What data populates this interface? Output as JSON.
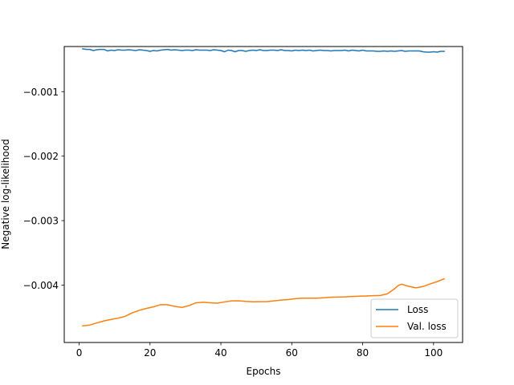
{
  "chart_data": {
    "type": "line",
    "title": "",
    "xlabel": "Epochs",
    "ylabel": "Negative log-likelihood",
    "xlim": [
      -4.2,
      108.2
    ],
    "ylim": [
      -0.00489,
      -0.0003
    ],
    "xticks": [
      0,
      20,
      40,
      60,
      80,
      100
    ],
    "yticks": [
      -0.001,
      -0.002,
      -0.003,
      -0.004
    ],
    "xtick_labels": [
      "0",
      "20",
      "40",
      "60",
      "80",
      "100"
    ],
    "ytick_labels": [
      "−0.001",
      "−0.002",
      "−0.003",
      "−0.004"
    ],
    "grid": false,
    "legend_position": "lower-right",
    "series": [
      {
        "name": "Loss",
        "color": "#1f77b4",
        "x": [
          1,
          2,
          3,
          4,
          5,
          6,
          7,
          8,
          9,
          10,
          11,
          12,
          13,
          14,
          15,
          16,
          17,
          18,
          19,
          20,
          21,
          22,
          23,
          24,
          25,
          26,
          27,
          28,
          29,
          30,
          31,
          32,
          33,
          34,
          35,
          36,
          37,
          38,
          39,
          40,
          41,
          42,
          43,
          44,
          45,
          46,
          47,
          48,
          49,
          50,
          51,
          52,
          53,
          54,
          55,
          56,
          57,
          58,
          59,
          60,
          61,
          62,
          63,
          64,
          65,
          66,
          67,
          68,
          69,
          70,
          71,
          72,
          73,
          74,
          75,
          76,
          77,
          78,
          79,
          80,
          81,
          82,
          83,
          84,
          85,
          86,
          87,
          88,
          89,
          90,
          91,
          92,
          93,
          94,
          95,
          96,
          97,
          98,
          99,
          100,
          101,
          102,
          103
        ],
        "values": [
          -0.000336,
          -0.000345,
          -0.000345,
          -0.000362,
          -0.00035,
          -0.000345,
          -0.000345,
          -0.000368,
          -0.000356,
          -0.000362,
          -0.00035,
          -0.000356,
          -0.000356,
          -0.00035,
          -0.000356,
          -0.000362,
          -0.00035,
          -0.000356,
          -0.000362,
          -0.000375,
          -0.000362,
          -0.000368,
          -0.000356,
          -0.00035,
          -0.000345,
          -0.000356,
          -0.00035,
          -0.000356,
          -0.000362,
          -0.000356,
          -0.000356,
          -0.000362,
          -0.00035,
          -0.000356,
          -0.000356,
          -0.000356,
          -0.000362,
          -0.00035,
          -0.000356,
          -0.000362,
          -0.000381,
          -0.000356,
          -0.000362,
          -0.000381,
          -0.000362,
          -0.000362,
          -0.000375,
          -0.000362,
          -0.000356,
          -0.000362,
          -0.00035,
          -0.000362,
          -0.000362,
          -0.000356,
          -0.000356,
          -0.000362,
          -0.00035,
          -0.000362,
          -0.000362,
          -0.000368,
          -0.000356,
          -0.000362,
          -0.000356,
          -0.000362,
          -0.000356,
          -0.000368,
          -0.000362,
          -0.000356,
          -0.000362,
          -0.000362,
          -0.000368,
          -0.000362,
          -0.000362,
          -0.000362,
          -0.000356,
          -0.000368,
          -0.000356,
          -0.000362,
          -0.000368,
          -0.000356,
          -0.000368,
          -0.000368,
          -0.000368,
          -0.000375,
          -0.000375,
          -0.000368,
          -0.000375,
          -0.000368,
          -0.000375,
          -0.000368,
          -0.000362,
          -0.000375,
          -0.000368,
          -0.000368,
          -0.000368,
          -0.000368,
          -0.000381,
          -0.000387,
          -0.000387,
          -0.000381,
          -0.000387,
          -0.000375,
          -0.000375
        ]
      },
      {
        "name": "Val. loss",
        "color": "#ff7f0e",
        "x": [
          1,
          3,
          5,
          7,
          9,
          11,
          13,
          15,
          17,
          19,
          21,
          23,
          25,
          27,
          29,
          31,
          33,
          35,
          37,
          39,
          41,
          43,
          45,
          47,
          49,
          51,
          53,
          55,
          57,
          59,
          61,
          63,
          65,
          67,
          69,
          71,
          73,
          75,
          77,
          79,
          81,
          83,
          85,
          87,
          89,
          90,
          91,
          93,
          95,
          97,
          99,
          101,
          103
        ],
        "values": [
          -0.004633,
          -0.004619,
          -0.004586,
          -0.004556,
          -0.004532,
          -0.004513,
          -0.004484,
          -0.004431,
          -0.00439,
          -0.004361,
          -0.004337,
          -0.004303,
          -0.004305,
          -0.00433,
          -0.004346,
          -0.004318,
          -0.004274,
          -0.004266,
          -0.004274,
          -0.004281,
          -0.004261,
          -0.004245,
          -0.004243,
          -0.004253,
          -0.004258,
          -0.004257,
          -0.004255,
          -0.004244,
          -0.004232,
          -0.004224,
          -0.004211,
          -0.004203,
          -0.004202,
          -0.004202,
          -0.004196,
          -0.004188,
          -0.004186,
          -0.004183,
          -0.004176,
          -0.004171,
          -0.004168,
          -0.004164,
          -0.004161,
          -0.004134,
          -0.004057,
          -0.004008,
          -0.003986,
          -0.004019,
          -0.004043,
          -0.004023,
          -0.003983,
          -0.003946,
          -0.003902
        ]
      }
    ]
  }
}
